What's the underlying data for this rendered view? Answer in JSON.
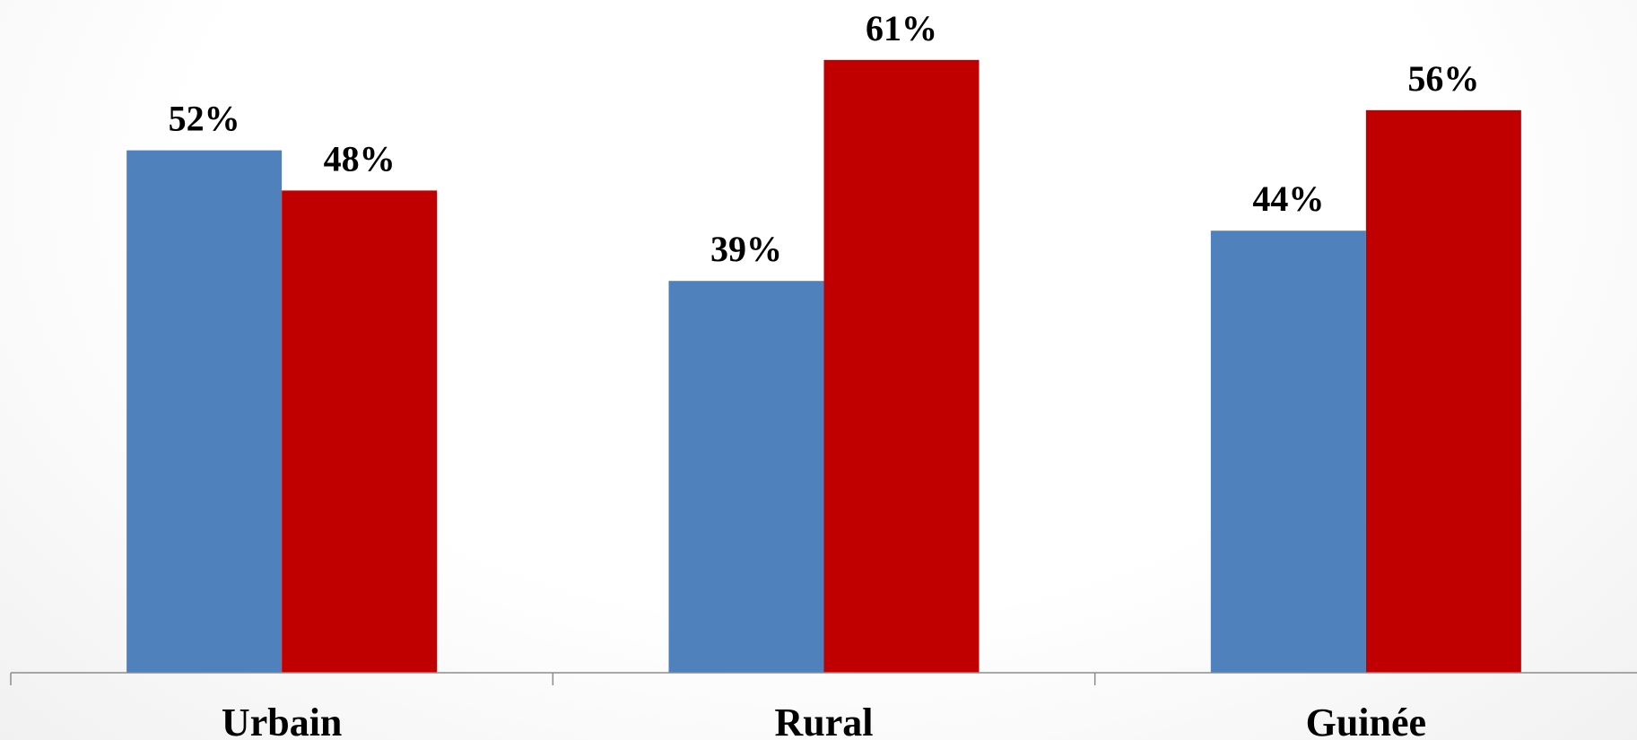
{
  "chart_data": {
    "type": "bar",
    "categories": [
      "Urbain",
      "Rural",
      "Guinée"
    ],
    "series": [
      {
        "values": [
          52,
          39,
          44
        ],
        "data_labels": [
          "52%",
          "39%",
          "44%"
        ],
        "color": "#4f81bd"
      },
      {
        "values": [
          48,
          61,
          56
        ],
        "data_labels": [
          "48%",
          "61%",
          "56%"
        ],
        "color": "#c00000"
      }
    ],
    "ylim": [
      0,
      70
    ],
    "unit": "%",
    "grid": false,
    "legend": "none",
    "title": "",
    "xlabel": "",
    "ylabel": ""
  }
}
